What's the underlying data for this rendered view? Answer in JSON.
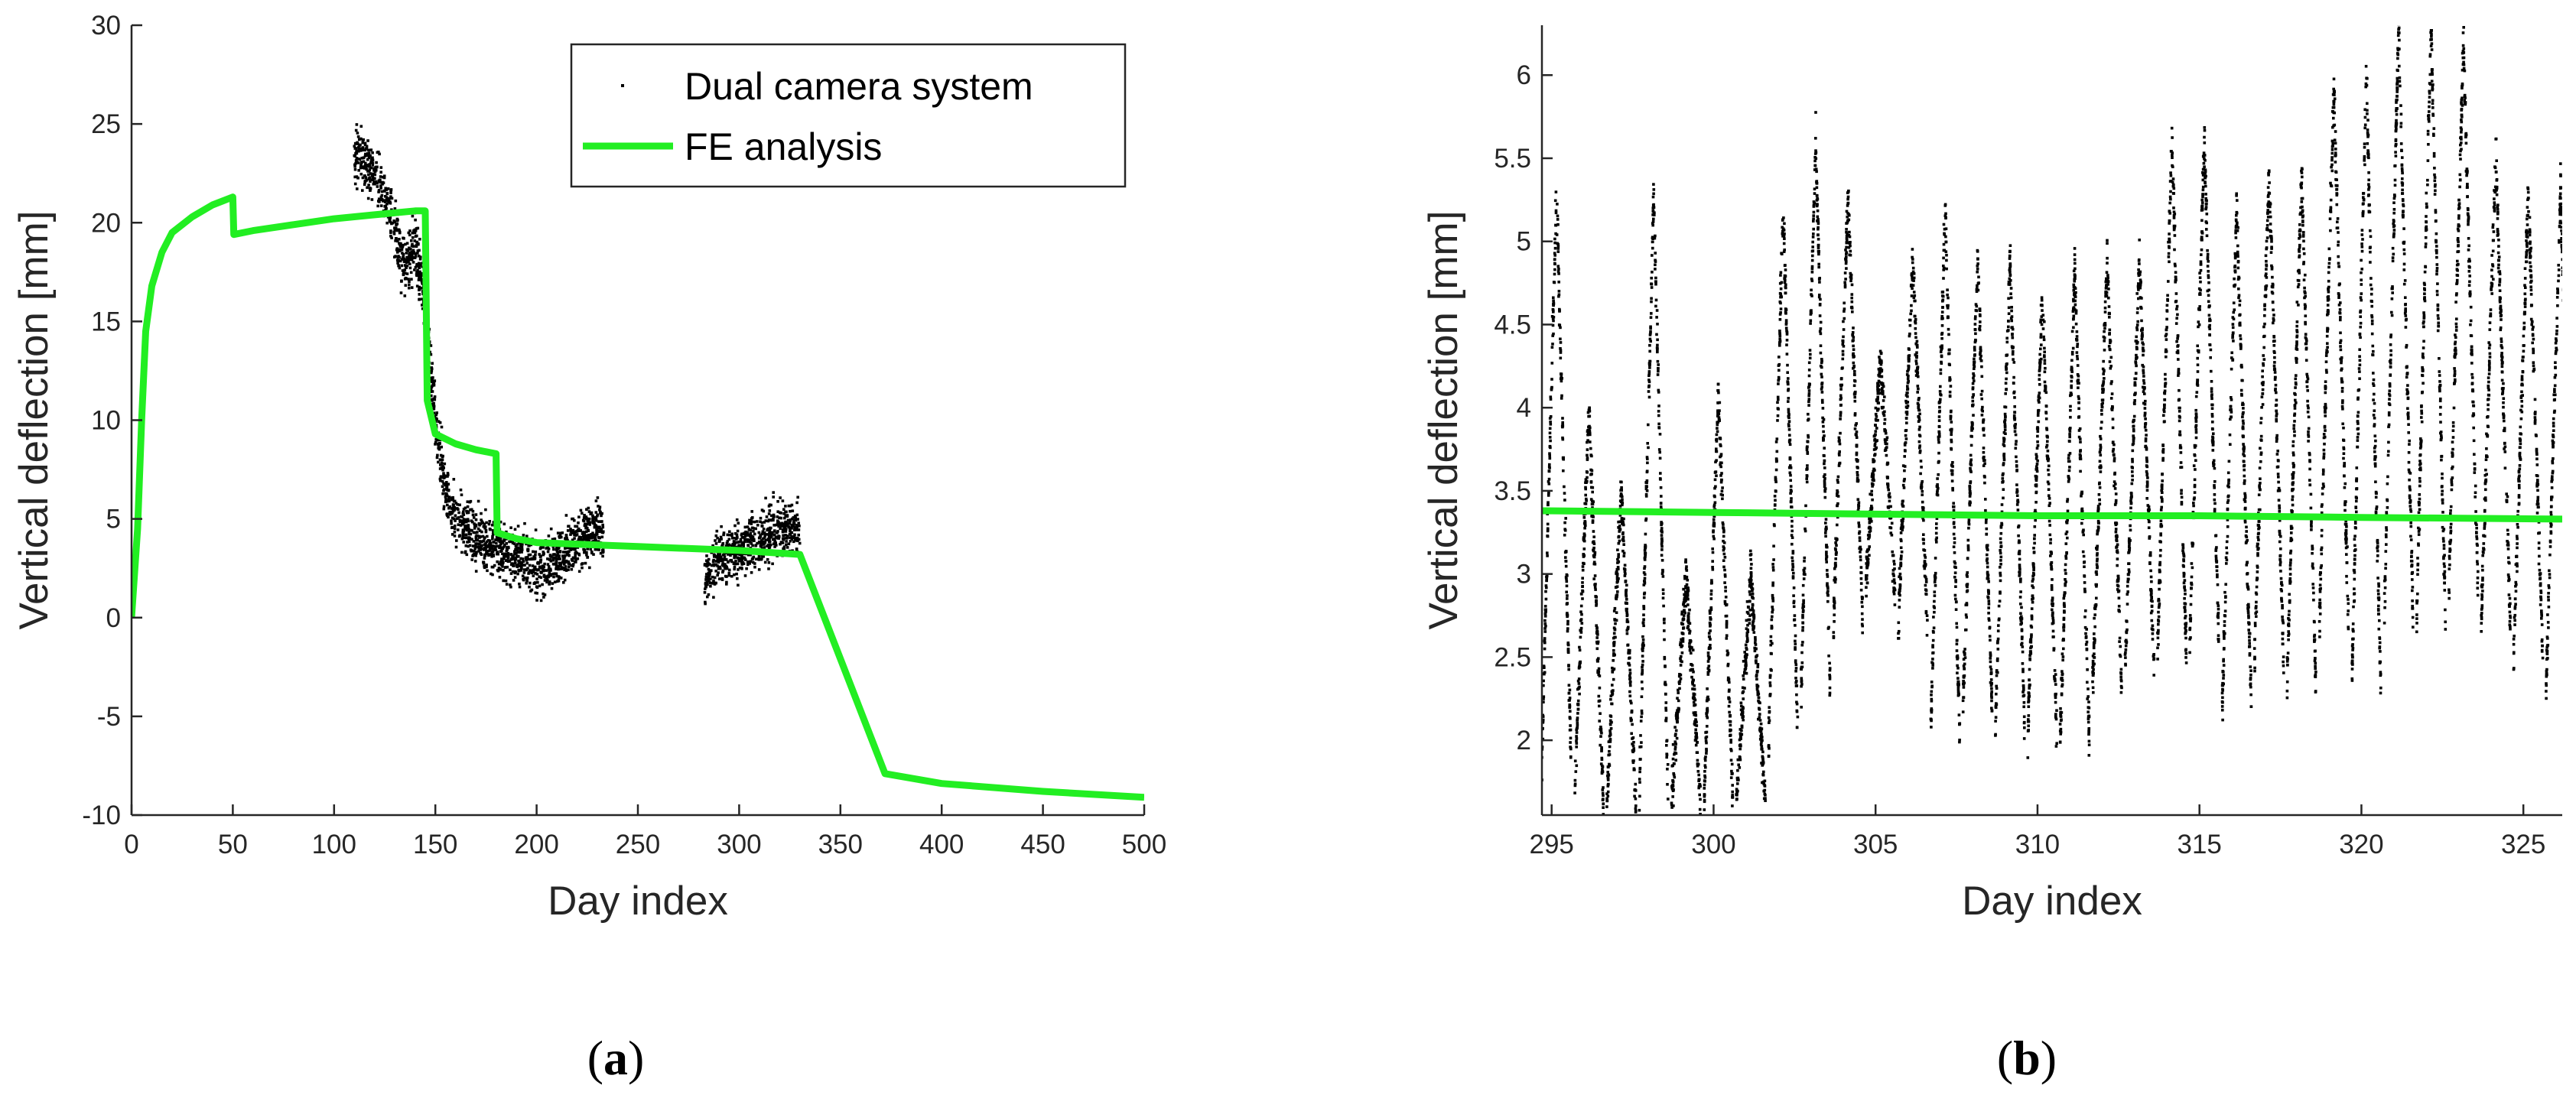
{
  "chart_data": [
    {
      "type": "line",
      "panel_label": "(a)",
      "panel_letter": "a",
      "xlabel": "Day index",
      "ylabel": "Vertical deflection [mm]",
      "xlim": [
        0,
        500
      ],
      "ylim": [
        -10,
        30
      ],
      "xticks": [
        0,
        50,
        100,
        150,
        200,
        250,
        300,
        350,
        400,
        450,
        500
      ],
      "yticks": [
        -10,
        -5,
        0,
        5,
        10,
        15,
        20,
        25,
        30
      ],
      "legend_position": "top-right",
      "series": [
        {
          "name": "Dual camera system",
          "style": "dots",
          "color": "#000000",
          "segments": [
            {
              "x_range": [
                110,
                233
              ],
              "x": [
                110,
                115,
                120,
                125,
                130,
                135,
                140,
                145,
                150,
                155,
                160,
                170,
                180,
                190,
                200,
                210,
                220,
                230,
                233
              ],
              "y": [
                23.5,
                23.0,
                22.5,
                21.5,
                19.5,
                17.5,
                19.0,
                16.0,
                10.0,
                6.5,
                5.0,
                4.0,
                3.5,
                3.0,
                2.5,
                3.0,
                4.0,
                4.5,
                4.0
              ]
            },
            {
              "x_range": [
                283,
                330
              ],
              "x": [
                283,
                290,
                300,
                310,
                320,
                330
              ],
              "y": [
                2.0,
                3.0,
                3.5,
                4.0,
                4.5,
                4.5
              ]
            }
          ]
        },
        {
          "name": "FE analysis",
          "style": "line",
          "color": "#22ee22",
          "x": [
            0,
            3,
            5,
            7,
            10,
            15,
            20,
            30,
            40,
            50,
            50.5,
            60,
            80,
            100,
            120,
            140,
            145,
            146,
            150,
            160,
            170,
            180,
            180.5,
            190,
            200,
            250,
            300,
            330,
            372,
            400,
            450,
            500
          ],
          "y": [
            0,
            4.5,
            10,
            14.5,
            16.8,
            18.5,
            19.5,
            20.3,
            20.9,
            21.3,
            19.4,
            19.6,
            19.9,
            20.2,
            20.4,
            20.6,
            20.6,
            11.0,
            9.3,
            8.8,
            8.5,
            8.3,
            4.3,
            4.0,
            3.8,
            3.6,
            3.4,
            3.2,
            -7.9,
            -8.4,
            -8.8,
            -9.1
          ]
        }
      ]
    },
    {
      "type": "scatter",
      "panel_label": "(b)",
      "panel_letter": "b",
      "xlabel": "Day index",
      "ylabel": "Vertical deflection [mm]",
      "xlim": [
        294.7,
        326.2
      ],
      "ylim": [
        1.55,
        6.3
      ],
      "xticks": [
        295,
        300,
        305,
        310,
        315,
        320,
        325
      ],
      "yticks": [
        2,
        2.5,
        3,
        3.5,
        4,
        4.5,
        5,
        5.5,
        6
      ],
      "series": [
        {
          "name": "Dual camera system",
          "style": "dots",
          "color": "#000000",
          "daily_min": [
            1.9,
            1.6,
            1.6,
            1.6,
            1.6,
            1.6,
            1.6,
            2.0,
            2.3,
            2.7,
            2.9,
            2.7,
            2.0,
            2.2,
            2.1,
            2.0,
            2.0,
            2.3,
            2.4,
            2.5,
            2.6,
            2.2,
            2.5,
            2.3,
            2.7,
            2.3,
            2.7,
            2.7,
            2.9,
            2.7,
            2.5,
            2.3
          ],
          "daily_max": [
            5.3,
            4.0,
            3.5,
            5.3,
            3.0,
            4.1,
            3.0,
            5.2,
            5.6,
            5.3,
            4.3,
            4.9,
            5.2,
            4.9,
            4.9,
            4.7,
            4.8,
            4.9,
            4.9,
            5.6,
            5.6,
            5.2,
            5.4,
            5.4,
            5.9,
            6.0,
            6.3,
            6.3,
            6.2,
            5.5,
            5.3,
            5.3
          ]
        },
        {
          "name": "FE analysis",
          "style": "line",
          "color": "#22ee22",
          "x": [
            294.7,
            300,
            305,
            310,
            315,
            320,
            326.2
          ],
          "y": [
            3.38,
            3.37,
            3.36,
            3.35,
            3.35,
            3.34,
            3.33
          ]
        }
      ]
    }
  ]
}
